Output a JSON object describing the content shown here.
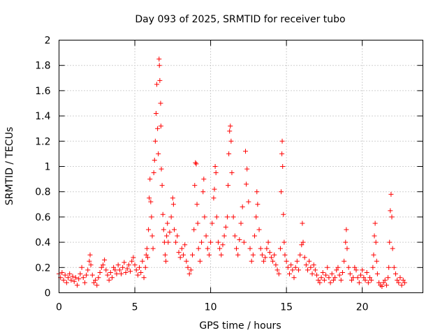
{
  "chart_data": {
    "type": "scatter",
    "title": "Day 093 of 2025, SRMTID for receiver tubo",
    "xlabel": "GPS time / hours",
    "ylabel": "SRMTID / TECUs",
    "xlim": [
      0,
      24
    ],
    "ylim": [
      0,
      2
    ],
    "xticks": [
      0,
      5,
      10,
      15,
      20
    ],
    "xtick_labels": [
      "0",
      "5",
      "10",
      "15",
      "20"
    ],
    "yticks": [
      0,
      0.2,
      0.4,
      0.6,
      0.8,
      1,
      1.2,
      1.4,
      1.6,
      1.8,
      2
    ],
    "ytick_labels": [
      "0",
      "0.2",
      "0.4",
      "0.6",
      "0.8",
      "1",
      "1.2",
      "1.4",
      "1.6",
      "1.8",
      "2"
    ],
    "grid": true,
    "marker": "+",
    "color": "#ff0000",
    "series": [
      {
        "name": "SRMTID",
        "points": [
          [
            0.0,
            0.15
          ],
          [
            0.1,
            0.12
          ],
          [
            0.2,
            0.16
          ],
          [
            0.3,
            0.1
          ],
          [
            0.4,
            0.14
          ],
          [
            0.5,
            0.08
          ],
          [
            0.6,
            0.12
          ],
          [
            0.7,
            0.15
          ],
          [
            0.8,
            0.1
          ],
          [
            0.9,
            0.13
          ],
          [
            1.0,
            0.09
          ],
          [
            1.1,
            0.12
          ],
          [
            1.2,
            0.06
          ],
          [
            1.3,
            0.11
          ],
          [
            1.4,
            0.15
          ],
          [
            1.5,
            0.2
          ],
          [
            1.6,
            0.12
          ],
          [
            1.7,
            0.08
          ],
          [
            1.8,
            0.14
          ],
          [
            1.9,
            0.18
          ],
          [
            2.0,
            0.25
          ],
          [
            2.05,
            0.3
          ],
          [
            2.1,
            0.22
          ],
          [
            2.2,
            0.14
          ],
          [
            2.3,
            0.08
          ],
          [
            2.4,
            0.1
          ],
          [
            2.5,
            0.06
          ],
          [
            2.6,
            0.12
          ],
          [
            2.7,
            0.16
          ],
          [
            2.8,
            0.2
          ],
          [
            2.9,
            0.22
          ],
          [
            3.0,
            0.26
          ],
          [
            3.1,
            0.18
          ],
          [
            3.2,
            0.14
          ],
          [
            3.3,
            0.1
          ],
          [
            3.4,
            0.16
          ],
          [
            3.5,
            0.12
          ],
          [
            3.6,
            0.2
          ],
          [
            3.7,
            0.18
          ],
          [
            3.8,
            0.15
          ],
          [
            3.9,
            0.22
          ],
          [
            4.0,
            0.18
          ],
          [
            4.1,
            0.15
          ],
          [
            4.2,
            0.2
          ],
          [
            4.3,
            0.24
          ],
          [
            4.4,
            0.16
          ],
          [
            4.5,
            0.19
          ],
          [
            4.6,
            0.22
          ],
          [
            4.7,
            0.17
          ],
          [
            4.8,
            0.25
          ],
          [
            4.9,
            0.28
          ],
          [
            5.0,
            0.22
          ],
          [
            5.1,
            0.18
          ],
          [
            5.2,
            0.14
          ],
          [
            5.3,
            0.2
          ],
          [
            5.4,
            0.16
          ],
          [
            5.5,
            0.25
          ],
          [
            5.6,
            0.12
          ],
          [
            5.7,
            0.2
          ],
          [
            5.75,
            0.3
          ],
          [
            5.8,
            0.35
          ],
          [
            5.85,
            0.28
          ],
          [
            5.9,
            0.5
          ],
          [
            5.95,
            0.75
          ],
          [
            6.0,
            0.9
          ],
          [
            6.05,
            0.72
          ],
          [
            6.1,
            0.6
          ],
          [
            6.15,
            0.45
          ],
          [
            6.2,
            0.35
          ],
          [
            6.25,
            0.95
          ],
          [
            6.3,
            1.05
          ],
          [
            6.35,
            1.2
          ],
          [
            6.4,
            1.42
          ],
          [
            6.45,
            1.65
          ],
          [
            6.5,
            1.3
          ],
          [
            6.55,
            1.1
          ],
          [
            6.6,
            1.85
          ],
          [
            6.62,
            1.8
          ],
          [
            6.65,
            1.68
          ],
          [
            6.7,
            1.5
          ],
          [
            6.72,
            1.32
          ],
          [
            6.75,
            0.98
          ],
          [
            6.8,
            0.85
          ],
          [
            6.85,
            0.62
          ],
          [
            6.9,
            0.5
          ],
          [
            6.95,
            0.4
          ],
          [
            7.0,
            0.3
          ],
          [
            7.05,
            0.25
          ],
          [
            7.1,
            0.45
          ],
          [
            7.15,
            0.55
          ],
          [
            7.2,
            0.4
          ],
          [
            7.3,
            0.48
          ],
          [
            7.4,
            0.6
          ],
          [
            7.5,
            0.75
          ],
          [
            7.55,
            0.7
          ],
          [
            7.6,
            0.5
          ],
          [
            7.7,
            0.4
          ],
          [
            7.8,
            0.45
          ],
          [
            7.9,
            0.32
          ],
          [
            8.0,
            0.28
          ],
          [
            8.1,
            0.35
          ],
          [
            8.2,
            0.3
          ],
          [
            8.3,
            0.38
          ],
          [
            8.4,
            0.25
          ],
          [
            8.5,
            0.2
          ],
          [
            8.6,
            0.15
          ],
          [
            8.7,
            0.18
          ],
          [
            8.8,
            0.3
          ],
          [
            8.9,
            0.5
          ],
          [
            8.95,
            0.85
          ],
          [
            9.0,
            1.03
          ],
          [
            9.05,
            1.02
          ],
          [
            9.1,
            0.7
          ],
          [
            9.15,
            0.55
          ],
          [
            9.2,
            0.35
          ],
          [
            9.3,
            0.25
          ],
          [
            9.4,
            0.4
          ],
          [
            9.5,
            0.8
          ],
          [
            9.55,
            0.9
          ],
          [
            9.6,
            0.6
          ],
          [
            9.7,
            0.45
          ],
          [
            9.8,
            0.35
          ],
          [
            9.9,
            0.3
          ],
          [
            10.0,
            0.4
          ],
          [
            10.1,
            0.55
          ],
          [
            10.2,
            0.75
          ],
          [
            10.25,
            0.82
          ],
          [
            10.3,
            1.0
          ],
          [
            10.35,
            0.95
          ],
          [
            10.4,
            0.6
          ],
          [
            10.5,
            0.4
          ],
          [
            10.6,
            0.35
          ],
          [
            10.7,
            0.3
          ],
          [
            10.8,
            0.38
          ],
          [
            10.9,
            0.45
          ],
          [
            11.0,
            0.52
          ],
          [
            11.1,
            0.6
          ],
          [
            11.15,
            0.85
          ],
          [
            11.2,
            1.1
          ],
          [
            11.25,
            1.28
          ],
          [
            11.3,
            1.32
          ],
          [
            11.35,
            1.2
          ],
          [
            11.4,
            0.95
          ],
          [
            11.5,
            0.6
          ],
          [
            11.6,
            0.45
          ],
          [
            11.7,
            0.35
          ],
          [
            11.8,
            0.3
          ],
          [
            11.9,
            0.42
          ],
          [
            12.0,
            0.55
          ],
          [
            12.1,
            0.68
          ],
          [
            12.2,
            0.4
          ],
          [
            12.3,
            1.12
          ],
          [
            12.35,
            0.86
          ],
          [
            12.4,
            0.98
          ],
          [
            12.5,
            0.72
          ],
          [
            12.6,
            0.35
          ],
          [
            12.7,
            0.25
          ],
          [
            12.8,
            0.3
          ],
          [
            12.9,
            0.45
          ],
          [
            13.0,
            0.6
          ],
          [
            13.05,
            0.8
          ],
          [
            13.1,
            0.7
          ],
          [
            13.2,
            0.5
          ],
          [
            13.3,
            0.35
          ],
          [
            13.4,
            0.3
          ],
          [
            13.5,
            0.25
          ],
          [
            13.6,
            0.28
          ],
          [
            13.7,
            0.35
          ],
          [
            13.8,
            0.4
          ],
          [
            13.9,
            0.32
          ],
          [
            14.0,
            0.28
          ],
          [
            14.1,
            0.25
          ],
          [
            14.2,
            0.3
          ],
          [
            14.3,
            0.22
          ],
          [
            14.4,
            0.18
          ],
          [
            14.5,
            0.15
          ],
          [
            14.6,
            0.35
          ],
          [
            14.65,
            0.8
          ],
          [
            14.7,
            1.1
          ],
          [
            14.72,
            1.2
          ],
          [
            14.75,
            1.0
          ],
          [
            14.8,
            0.62
          ],
          [
            14.85,
            0.4
          ],
          [
            14.9,
            0.3
          ],
          [
            15.0,
            0.25
          ],
          [
            15.1,
            0.2
          ],
          [
            15.2,
            0.15
          ],
          [
            15.3,
            0.22
          ],
          [
            15.4,
            0.18
          ],
          [
            15.5,
            0.12
          ],
          [
            15.6,
            0.2
          ],
          [
            15.7,
            0.25
          ],
          [
            15.8,
            0.18
          ],
          [
            15.9,
            0.3
          ],
          [
            16.0,
            0.38
          ],
          [
            16.05,
            0.55
          ],
          [
            16.1,
            0.4
          ],
          [
            16.2,
            0.28
          ],
          [
            16.3,
            0.22
          ],
          [
            16.4,
            0.18
          ],
          [
            16.5,
            0.25
          ],
          [
            16.6,
            0.2
          ],
          [
            16.7,
            0.15
          ],
          [
            16.8,
            0.22
          ],
          [
            16.9,
            0.18
          ],
          [
            17.0,
            0.14
          ],
          [
            17.1,
            0.1
          ],
          [
            17.2,
            0.08
          ],
          [
            17.3,
            0.12
          ],
          [
            17.4,
            0.16
          ],
          [
            17.5,
            0.1
          ],
          [
            17.6,
            0.14
          ],
          [
            17.7,
            0.2
          ],
          [
            17.8,
            0.12
          ],
          [
            17.9,
            0.08
          ],
          [
            18.0,
            0.15
          ],
          [
            18.1,
            0.1
          ],
          [
            18.2,
            0.12
          ],
          [
            18.3,
            0.18
          ],
          [
            18.4,
            0.2
          ],
          [
            18.5,
            0.14
          ],
          [
            18.6,
            0.1
          ],
          [
            18.7,
            0.16
          ],
          [
            18.8,
            0.25
          ],
          [
            18.9,
            0.4
          ],
          [
            18.95,
            0.5
          ],
          [
            19.0,
            0.35
          ],
          [
            19.1,
            0.2
          ],
          [
            19.2,
            0.15
          ],
          [
            19.3,
            0.1
          ],
          [
            19.4,
            0.12
          ],
          [
            19.5,
            0.2
          ],
          [
            19.6,
            0.18
          ],
          [
            19.7,
            0.12
          ],
          [
            19.8,
            0.08
          ],
          [
            19.9,
            0.14
          ],
          [
            20.0,
            0.18
          ],
          [
            20.1,
            0.12
          ],
          [
            20.2,
            0.1
          ],
          [
            20.3,
            0.16
          ],
          [
            20.4,
            0.08
          ],
          [
            20.5,
            0.12
          ],
          [
            20.6,
            0.1
          ],
          [
            20.7,
            0.2
          ],
          [
            20.75,
            0.3
          ],
          [
            20.8,
            0.45
          ],
          [
            20.85,
            0.55
          ],
          [
            20.9,
            0.4
          ],
          [
            20.95,
            0.25
          ],
          [
            21.0,
            0.15
          ],
          [
            21.1,
            0.08
          ],
          [
            21.2,
            0.06
          ],
          [
            21.3,
            0.05
          ],
          [
            21.4,
            0.08
          ],
          [
            21.5,
            0.1
          ],
          [
            21.6,
            0.06
          ],
          [
            21.7,
            0.12
          ],
          [
            21.75,
            0.2
          ],
          [
            21.8,
            0.4
          ],
          [
            21.85,
            0.65
          ],
          [
            21.9,
            0.78
          ],
          [
            21.95,
            0.6
          ],
          [
            22.0,
            0.35
          ],
          [
            22.1,
            0.2
          ],
          [
            22.2,
            0.15
          ],
          [
            22.3,
            0.1
          ],
          [
            22.4,
            0.08
          ],
          [
            22.5,
            0.12
          ],
          [
            22.6,
            0.06
          ],
          [
            22.7,
            0.1
          ],
          [
            22.8,
            0.08
          ]
        ]
      }
    ]
  }
}
